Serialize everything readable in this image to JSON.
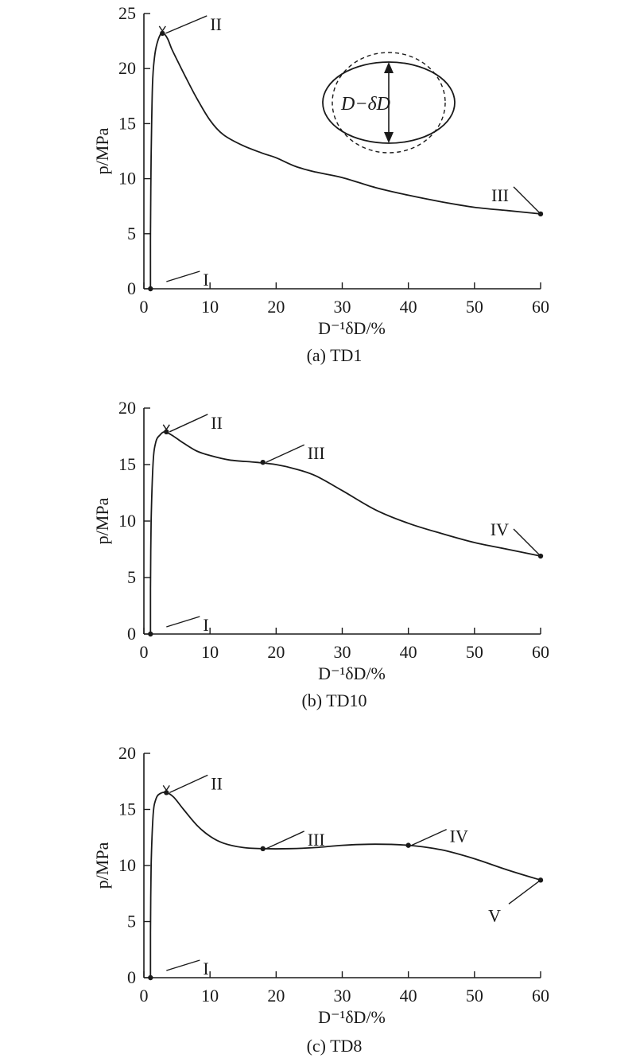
{
  "chart_data": [
    {
      "type": "line",
      "caption": "(a) TD1",
      "xlabel": "D⁻¹δD/%",
      "ylabel": "p/MPa",
      "xlim": [
        0,
        60
      ],
      "ylim": [
        0,
        25
      ],
      "xticks": [
        0,
        10,
        20,
        30,
        40,
        50,
        60
      ],
      "yticks": [
        0,
        5,
        10,
        15,
        20,
        25
      ],
      "series": [
        {
          "x": [
            1.0,
            1.0,
            1.1,
            1.3,
            1.6,
            2.0,
            2.6,
            3.0,
            3.6,
            4.2,
            5.0,
            6.5,
            8.0,
            10.0,
            12.0,
            15.0,
            18.0,
            20.0,
            23.0,
            26.0,
            30.0,
            35.0,
            40.0,
            45.0,
            50.0,
            55.0,
            60.0
          ],
          "y": [
            0.0,
            5.0,
            12.0,
            18.5,
            21.0,
            22.3,
            23.2,
            23.2,
            22.7,
            21.8,
            20.8,
            19.0,
            17.3,
            15.3,
            14.0,
            13.0,
            12.3,
            11.9,
            11.1,
            10.6,
            10.1,
            9.2,
            8.5,
            7.9,
            7.4,
            7.1,
            6.8
          ]
        }
      ],
      "points": [
        {
          "label": "I",
          "x": 1.0,
          "y": 0.0
        },
        {
          "label": "II",
          "x": 2.8,
          "y": 23.2
        },
        {
          "label": "III",
          "x": 60.0,
          "y": 6.8
        }
      ],
      "inset_label": "D−δD"
    },
    {
      "type": "line",
      "caption": "(b) TD10",
      "xlabel": "D⁻¹δD/%",
      "ylabel": "p/MPa",
      "xlim": [
        0,
        60
      ],
      "ylim": [
        0,
        20
      ],
      "xticks": [
        0,
        10,
        20,
        30,
        40,
        50,
        60
      ],
      "yticks": [
        0,
        5,
        10,
        15,
        20
      ],
      "series": [
        {
          "x": [
            1.0,
            1.0,
            1.1,
            1.4,
            1.8,
            2.4,
            3.2,
            4.5,
            6.0,
            8.0,
            10.0,
            13.0,
            17.0,
            20.0,
            23.0,
            26.0,
            30.0,
            35.0,
            40.0,
            45.0,
            50.0,
            55.0,
            60.0
          ],
          "y": [
            0.0,
            4.0,
            10.0,
            15.2,
            17.0,
            17.6,
            17.9,
            17.5,
            16.9,
            16.2,
            15.8,
            15.4,
            15.2,
            15.0,
            14.6,
            14.0,
            12.7,
            11.0,
            9.8,
            8.9,
            8.1,
            7.5,
            6.9
          ]
        }
      ],
      "points": [
        {
          "label": "I",
          "x": 1.0,
          "y": 0.0
        },
        {
          "label": "II",
          "x": 3.4,
          "y": 17.9
        },
        {
          "label": "III",
          "x": 18.0,
          "y": 15.2
        },
        {
          "label": "IV",
          "x": 60.0,
          "y": 6.9
        }
      ]
    },
    {
      "type": "line",
      "caption": "(c) TD8",
      "xlabel": "D⁻¹δD/%",
      "ylabel": "p/MPa",
      "xlim": [
        0,
        60
      ],
      "ylim": [
        0,
        20
      ],
      "xticks": [
        0,
        10,
        20,
        30,
        40,
        50,
        60
      ],
      "yticks": [
        0,
        5,
        10,
        15,
        20
      ],
      "series": [
        {
          "x": [
            1.0,
            1.0,
            1.1,
            1.4,
            1.8,
            2.4,
            3.4,
            4.5,
            6.0,
            8.0,
            10.0,
            12.0,
            15.0,
            18.0,
            22.0,
            26.0,
            30.0,
            35.0,
            40.0,
            45.0,
            50.0,
            55.0,
            60.0
          ],
          "y": [
            0.0,
            4.0,
            10.0,
            14.5,
            15.9,
            16.4,
            16.5,
            16.1,
            15.0,
            13.6,
            12.6,
            12.0,
            11.6,
            11.5,
            11.5,
            11.6,
            11.8,
            11.9,
            11.8,
            11.4,
            10.6,
            9.6,
            8.7
          ]
        }
      ],
      "points": [
        {
          "label": "I",
          "x": 1.0,
          "y": 0.0
        },
        {
          "label": "II",
          "x": 3.4,
          "y": 16.5
        },
        {
          "label": "III",
          "x": 18.0,
          "y": 11.5
        },
        {
          "label": "IV",
          "x": 40.0,
          "y": 11.8
        },
        {
          "label": "V",
          "x": 60.0,
          "y": 8.7
        }
      ]
    }
  ]
}
